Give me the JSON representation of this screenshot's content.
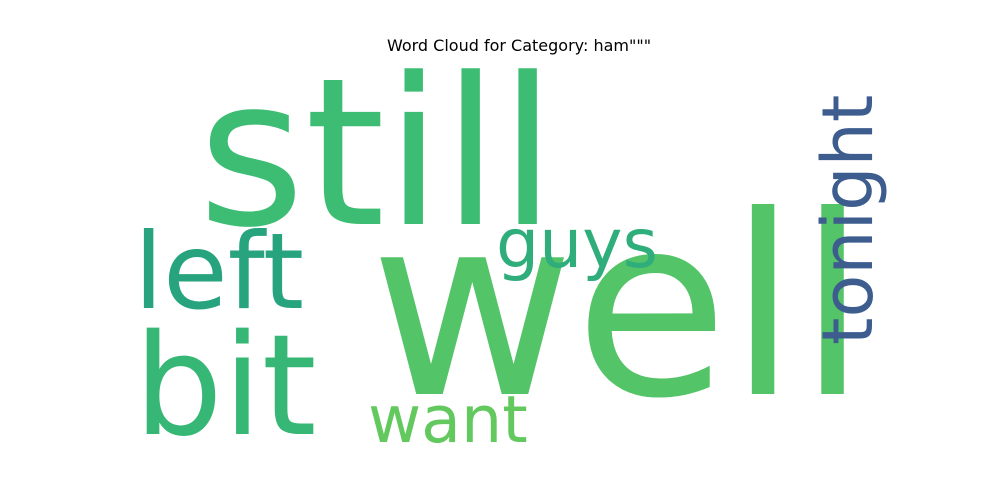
{
  "chart_data": {
    "type": "wordcloud",
    "title": "Word Cloud for Category: ham\"\"\"",
    "words": [
      {
        "text": "still",
        "color": "#3dbd74"
      },
      {
        "text": "well",
        "color": "#54c468"
      },
      {
        "text": "tonight",
        "color": "#3e5d8f"
      },
      {
        "text": "left",
        "color": "#27a37e"
      },
      {
        "text": "bit",
        "color": "#36b775"
      },
      {
        "text": "guys",
        "color": "#2fae7c"
      },
      {
        "text": "want",
        "color": "#63c95f"
      }
    ]
  }
}
